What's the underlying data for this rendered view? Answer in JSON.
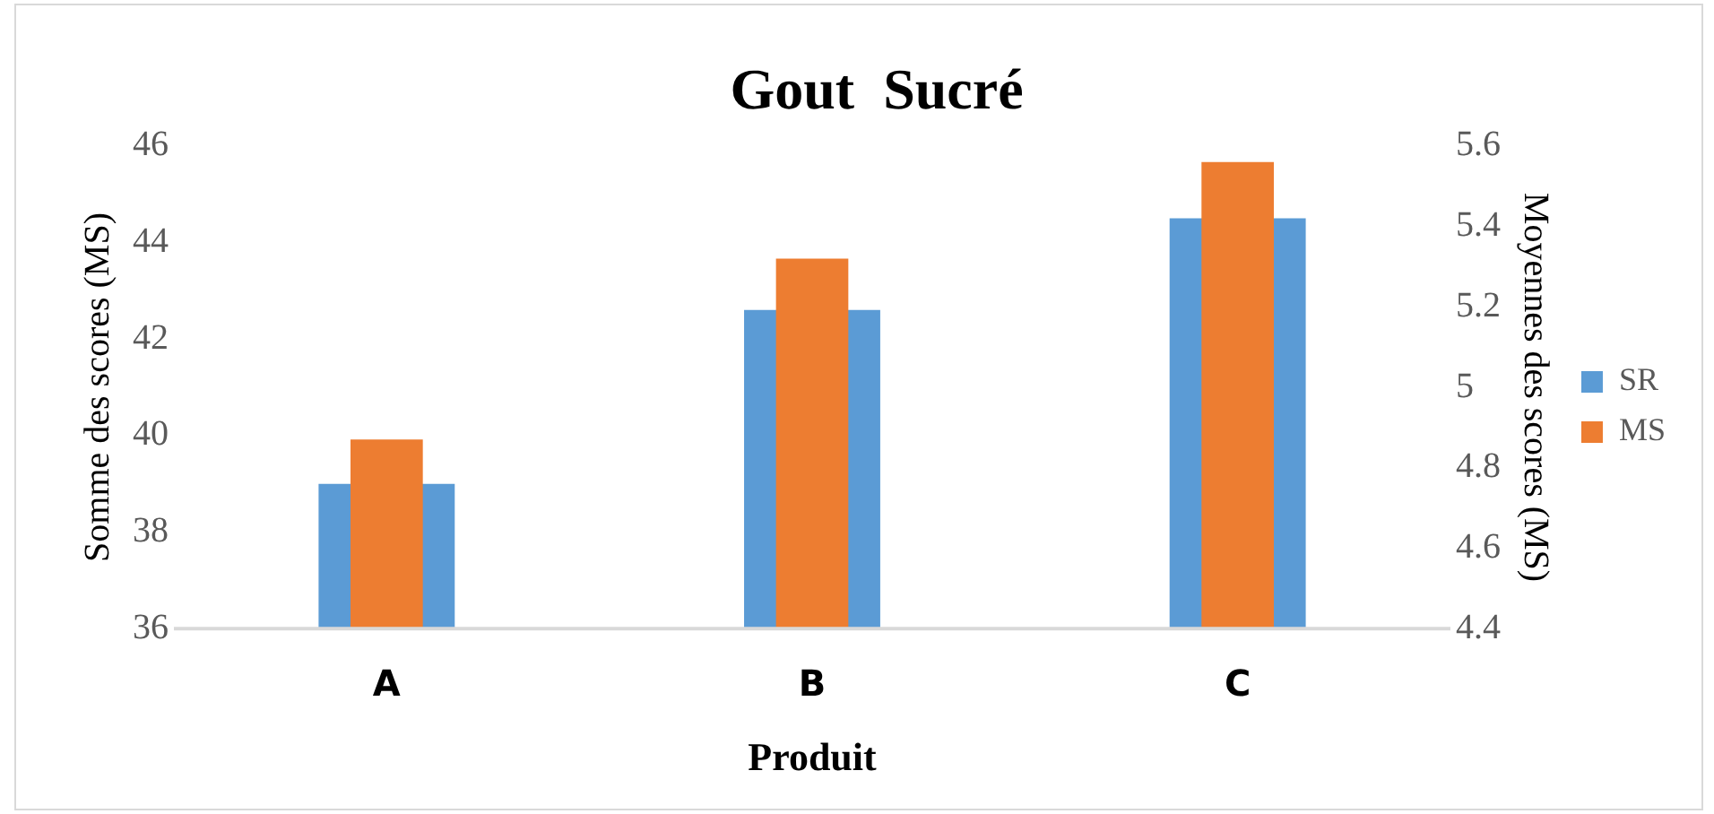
{
  "chart_data": {
    "type": "bar",
    "title": "Gout  Sucré",
    "xlabel": "Produit",
    "ylabel": "Somme des scores (MS)",
    "y2label": "Moyennes des scores (MS)",
    "categories": [
      "A",
      "B",
      "C"
    ],
    "series": [
      {
        "name": "SR",
        "color": "#5b9bd5",
        "values": [
          39,
          42.6,
          44.5
        ]
      },
      {
        "name": "MS",
        "color": "#ed7d31",
        "values": [
          4.87,
          5.32,
          5.56
        ],
        "axis": "y2"
      }
    ],
    "ylim": [
      36,
      46
    ],
    "yticks": [
      36,
      38,
      40,
      42,
      44,
      46
    ],
    "y2lim": [
      4.4,
      5.6
    ],
    "y2ticks": [
      {
        "value": 4.4,
        "label": "4.4"
      },
      {
        "value": 4.6,
        "label": "4.6"
      },
      {
        "value": 4.8,
        "label": "4.8"
      },
      {
        "value": 5,
        "label": "5"
      },
      {
        "value": 5.2,
        "label": "5.2"
      },
      {
        "value": 5.4,
        "label": "5.4"
      },
      {
        "value": 5.6,
        "label": "5.6"
      }
    ],
    "grid": false,
    "legend": "right"
  }
}
